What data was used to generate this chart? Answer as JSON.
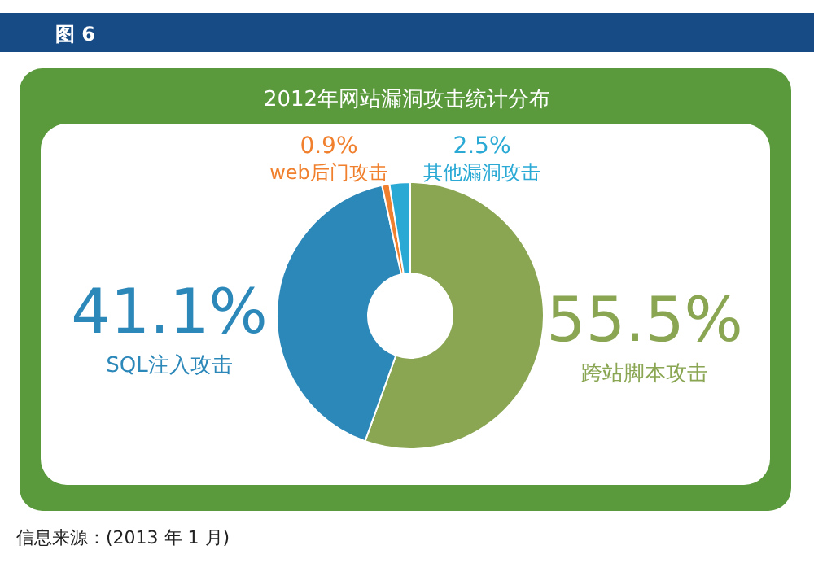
{
  "chart_data": {
    "type": "donut",
    "title": "2012年网站漏洞攻击统计分布",
    "categories": [
      "跨站脚本攻击",
      "SQL注入攻击",
      "web后门攻击",
      "其他漏洞攻击"
    ],
    "values": [
      55.5,
      41.1,
      0.9,
      2.5
    ],
    "colors": [
      "#8aa653",
      "#2d88ba",
      "#f0802e",
      "#2aa9d5"
    ],
    "value_labels": [
      "55.5%",
      "41.1%",
      "0.9%",
      "2.5%"
    ],
    "annotations": [
      "图 6",
      "信息来源：(2013 年 1 月)"
    ]
  }
}
